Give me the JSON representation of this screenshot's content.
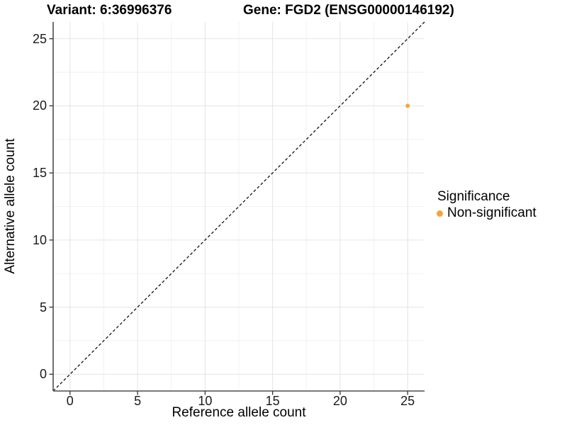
{
  "chart_data": {
    "type": "scatter",
    "title_left": "Variant: 6:36996376",
    "title_right": "Gene: FGD2 (ENSG00000146192)",
    "xlabel": "Reference allele count",
    "ylabel": "Alternative allele count",
    "xlim": [
      -1.25,
      26.25
    ],
    "ylim": [
      -1.25,
      26.25
    ],
    "x_ticks": [
      0,
      5,
      10,
      15,
      20,
      25
    ],
    "y_ticks": [
      0,
      5,
      10,
      15,
      20,
      25
    ],
    "x_minor_ticks": [
      2.5,
      7.5,
      12.5,
      17.5,
      22.5
    ],
    "y_minor_ticks": [
      2.5,
      7.5,
      12.5,
      17.5,
      22.5
    ],
    "grid": true,
    "reference_line": {
      "type": "identity-diagonal",
      "style": "dashed",
      "color": "#111111"
    },
    "series": [
      {
        "name": "Non-significant",
        "color": "#F9A23C",
        "points": [
          {
            "x": 25,
            "y": 20
          }
        ]
      }
    ],
    "legend": {
      "title": "Significance",
      "position": "right",
      "entries": [
        {
          "label": "Non-significant",
          "color": "#F9A23C"
        }
      ]
    },
    "style": {
      "major_grid_color": "#e4e4e4",
      "minor_grid_color": "#f2f2f2",
      "axis_line_color": "#4d4d4d",
      "tick_mark_color": "#333333",
      "background": "#ffffff"
    }
  }
}
